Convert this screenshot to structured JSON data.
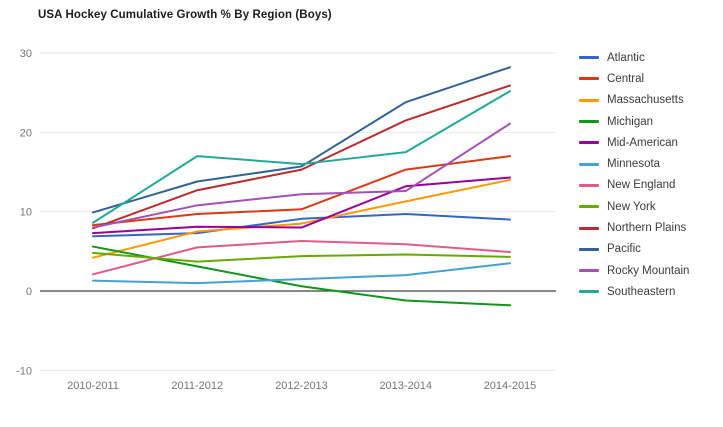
{
  "chart_data": {
    "type": "line",
    "title": "USA Hockey Cumulative Growth % By Region (Boys)",
    "xlabel": "",
    "ylabel": "",
    "categories": [
      "2010-2011",
      "2011-2012",
      "2012-2013",
      "2013-2014",
      "2014-2015"
    ],
    "series": [
      {
        "name": "Atlantic",
        "color": "#3366cc",
        "values": [
          6.9,
          7.3,
          9.1,
          9.7,
          9.0
        ]
      },
      {
        "name": "Central",
        "color": "#dc3912",
        "values": [
          8.3,
          9.7,
          10.3,
          15.3,
          17.0
        ]
      },
      {
        "name": "Massachusetts",
        "color": "#ff9900",
        "values": [
          4.2,
          7.5,
          8.5,
          11.3,
          14.0
        ]
      },
      {
        "name": "Michigan",
        "color": "#109618",
        "values": [
          5.6,
          3.1,
          0.6,
          -1.2,
          -1.8
        ]
      },
      {
        "name": "Mid-American",
        "color": "#990099",
        "values": [
          7.3,
          8.1,
          8.0,
          13.2,
          14.3
        ]
      },
      {
        "name": "Minnesota",
        "color": "#45a1d6",
        "values": [
          1.3,
          1.0,
          1.5,
          2.0,
          3.5
        ]
      },
      {
        "name": "New England",
        "color": "#e05c86",
        "values": [
          2.1,
          5.5,
          6.3,
          5.9,
          4.9
        ]
      },
      {
        "name": "New York",
        "color": "#66aa00",
        "values": [
          4.8,
          3.7,
          4.4,
          4.6,
          4.3
        ]
      },
      {
        "name": "Northern Plains",
        "color": "#b82e2e",
        "values": [
          7.9,
          12.7,
          15.3,
          21.5,
          25.9
        ]
      },
      {
        "name": "Pacific",
        "color": "#316395",
        "values": [
          9.9,
          13.8,
          15.7,
          23.8,
          28.2
        ]
      },
      {
        "name": "Rocky Mountain",
        "color": "#a550b4",
        "values": [
          8.0,
          10.8,
          12.2,
          12.6,
          21.1
        ]
      },
      {
        "name": "Southeastern",
        "color": "#22aa99",
        "values": [
          8.6,
          17.0,
          16.0,
          17.5,
          25.2
        ]
      }
    ],
    "yticks": [
      30,
      20,
      10,
      0,
      -10
    ],
    "ylim": [
      -10,
      30
    ],
    "grid": "horizontal",
    "legend_position": "right",
    "colors": {
      "grid_line": "#e6e6e6",
      "zero_line": "#424242",
      "axis_text": "#757575",
      "title_text": "#1d1d1d",
      "legend_text": "#3c3c3c",
      "background": "#ffffff"
    }
  }
}
